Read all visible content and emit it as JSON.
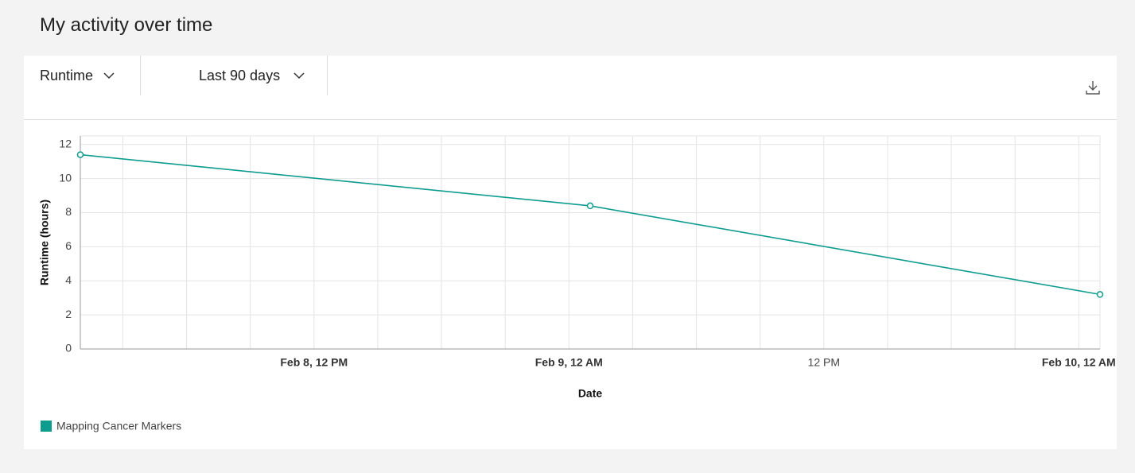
{
  "header": {
    "title": "My activity over time"
  },
  "controls": {
    "metric": "Runtime",
    "period": "Last 90 days"
  },
  "chart_data": {
    "type": "line",
    "x_label": "Date",
    "y_label": "Runtime (hours)",
    "x": [
      "Feb 8 01:00",
      "Feb 9 01:00",
      "Feb 10 01:00"
    ],
    "series": [
      {
        "name": "Mapping Cancer Markers",
        "color": "#0e9c8e",
        "values": [
          11.4,
          8.4,
          3.2
        ]
      }
    ],
    "xlim": [
      "Feb 8 01:00",
      "Feb 10 01:00"
    ],
    "xticks": [
      {
        "value": "Feb 8 03:00",
        "label": null
      },
      {
        "value": "Feb 8 06:00",
        "label": null
      },
      {
        "value": "Feb 8 09:00",
        "label": null
      },
      {
        "value": "Feb 8 12:00",
        "label": "Feb 8, 12 PM"
      },
      {
        "value": "Feb 8 15:00",
        "label": null
      },
      {
        "value": "Feb 8 18:00",
        "label": null
      },
      {
        "value": "Feb 8 21:00",
        "label": null
      },
      {
        "value": "Feb 9 00:00",
        "label": "Feb 9, 12 AM"
      },
      {
        "value": "Feb 9 03:00",
        "label": null
      },
      {
        "value": "Feb 9 06:00",
        "label": null
      },
      {
        "value": "Feb 9 09:00",
        "label": null
      },
      {
        "value": "Feb 9 12:00",
        "label": "12 PM"
      },
      {
        "value": "Feb 9 15:00",
        "label": null
      },
      {
        "value": "Feb 9 18:00",
        "label": null
      },
      {
        "value": "Feb 9 21:00",
        "label": null
      },
      {
        "value": "Feb 10 00:00",
        "label": "Feb 10, 12 AM"
      }
    ],
    "ylim": [
      0,
      12.5
    ],
    "yticks": [
      0,
      2,
      4,
      6,
      8,
      10,
      12
    ],
    "grid": true
  }
}
